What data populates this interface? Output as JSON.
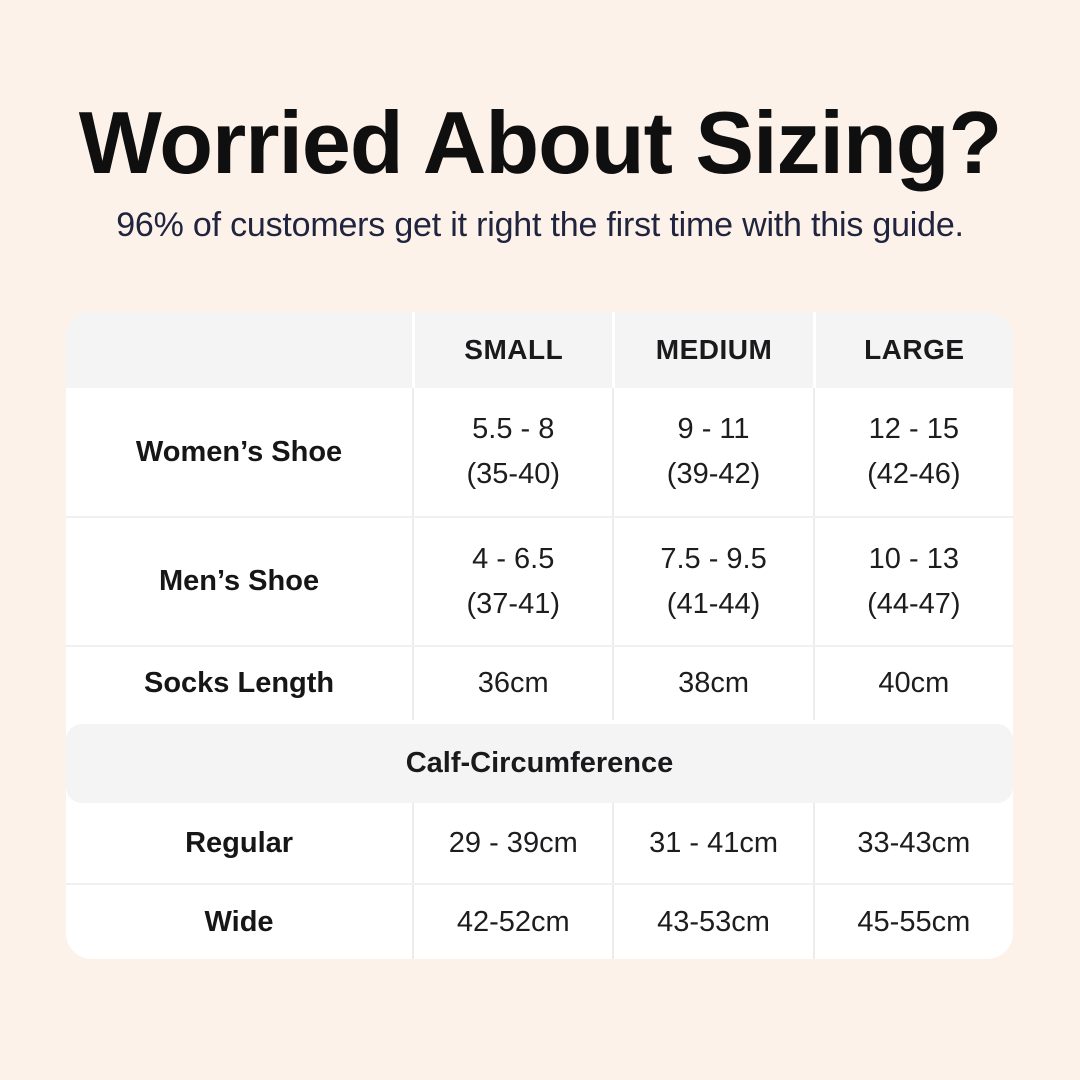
{
  "colors": {
    "page_background": "#fcf2ea",
    "card_background": "#ffffff",
    "band_background": "#f4f4f5",
    "divider": "#ececec",
    "title_text": "#0f0f10",
    "subtitle_text": "#20243e",
    "table_text": "#1d1d1f"
  },
  "header": {
    "title": "Worried About Sizing?",
    "subtitle": "96% of customers get it right the first time with this guide."
  },
  "table": {
    "corner_header": "",
    "col_headers": [
      "SMALL",
      "MEDIUM",
      "LARGE"
    ],
    "shoe_rows": [
      {
        "label": "Women’s Shoe",
        "small": [
          "5.5 - 8",
          "(35-40)"
        ],
        "medium": [
          "9 - 11",
          "(39-42)"
        ],
        "large": [
          "12 - 15",
          "(42-46)"
        ]
      },
      {
        "label": "Men’s Shoe",
        "small": [
          "4 - 6.5",
          "(37-41)"
        ],
        "medium": [
          "7.5 - 9.5",
          "(41-44)"
        ],
        "large": [
          "10 - 13",
          "(44-47)"
        ]
      }
    ],
    "socks_row": {
      "label": "Socks Length",
      "small": "36cm",
      "medium": "38cm",
      "large": "40cm"
    },
    "section_header": "Calf-Circumference",
    "calf_rows": [
      {
        "label": "Regular",
        "small": "29 - 39cm",
        "medium": "31 - 41cm",
        "large": "33-43cm"
      },
      {
        "label": "Wide",
        "small": "42-52cm",
        "medium": "43-53cm",
        "large": "45-55cm"
      }
    ]
  },
  "chart_data": {
    "type": "table",
    "title": "Worried About Sizing?",
    "subtitle": "96% of customers get it right the first time with this guide.",
    "columns": [
      "",
      "SMALL",
      "MEDIUM",
      "LARGE"
    ],
    "rows": [
      [
        "Women’s Shoe",
        "5.5 - 8 (35-40)",
        "9 - 11 (39-42)",
        "12 - 15 (42-46)"
      ],
      [
        "Men’s Shoe",
        "4 - 6.5 (37-41)",
        "7.5 - 9.5 (41-44)",
        "10 - 13 (44-47)"
      ],
      [
        "Socks Length",
        "36cm",
        "38cm",
        "40cm"
      ],
      [
        "Calf-Circumference",
        "",
        "",
        ""
      ],
      [
        "Regular",
        "29 - 39cm",
        "31 - 41cm",
        "33-43cm"
      ],
      [
        "Wide",
        "42-52cm",
        "43-53cm",
        "45-55cm"
      ]
    ]
  }
}
